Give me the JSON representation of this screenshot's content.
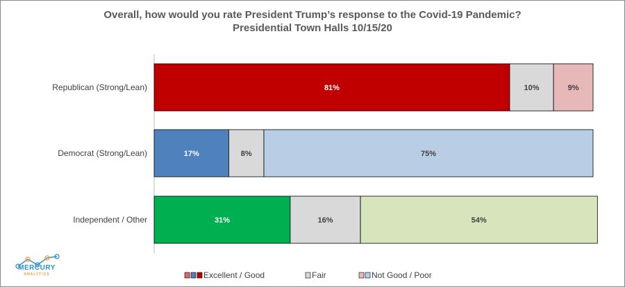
{
  "chart_data": {
    "type": "bar",
    "orientation": "horizontal-stacked-100",
    "title": "Overall, how would you rate President Trump’s response to the Covid-19 Pandemic?",
    "subtitle": "Presidential Town Halls 10/15/20",
    "categories": [
      "Republican (Strong/Lean)",
      "Democrat (Strong/Lean)",
      "Independent / Other"
    ],
    "series": [
      {
        "name": "Excellent / Good",
        "values": [
          81,
          17,
          31
        ],
        "colors": [
          "#c00000",
          "#4f81bd",
          "#00b050"
        ]
      },
      {
        "name": "Fair",
        "values": [
          10,
          8,
          16
        ],
        "colors": [
          "#d9d9d9",
          "#d9d9d9",
          "#d9d9d9"
        ]
      },
      {
        "name": "Not Good / Poor",
        "values": [
          9,
          75,
          54
        ],
        "colors": [
          "#e6b8b7",
          "#b9cde5",
          "#d8e4bc"
        ]
      }
    ],
    "label_colors": [
      [
        "#ffffff",
        "#404040",
        "#404040"
      ],
      [
        "#ffffff",
        "#404040",
        "#404040"
      ],
      [
        "#ffffff",
        "#404040",
        "#404040"
      ]
    ],
    "value_suffix": "%",
    "xlim": [
      0,
      100
    ],
    "legend_position": "bottom",
    "legend": [
      {
        "label": "Excellent / Good",
        "swatches": [
          "#e06666",
          "#4f81bd",
          "#c00000"
        ]
      },
      {
        "label": "Fair",
        "swatches": [
          "#d9d9d9"
        ]
      },
      {
        "label": "Not Good / Poor",
        "swatches": [
          "#e6b8b7",
          "#b9cde5"
        ]
      }
    ]
  },
  "logo": {
    "name": "MERCURY",
    "tagline": "ANALYTICS",
    "color": "#2f8fc7",
    "accent": "#f29a38"
  }
}
